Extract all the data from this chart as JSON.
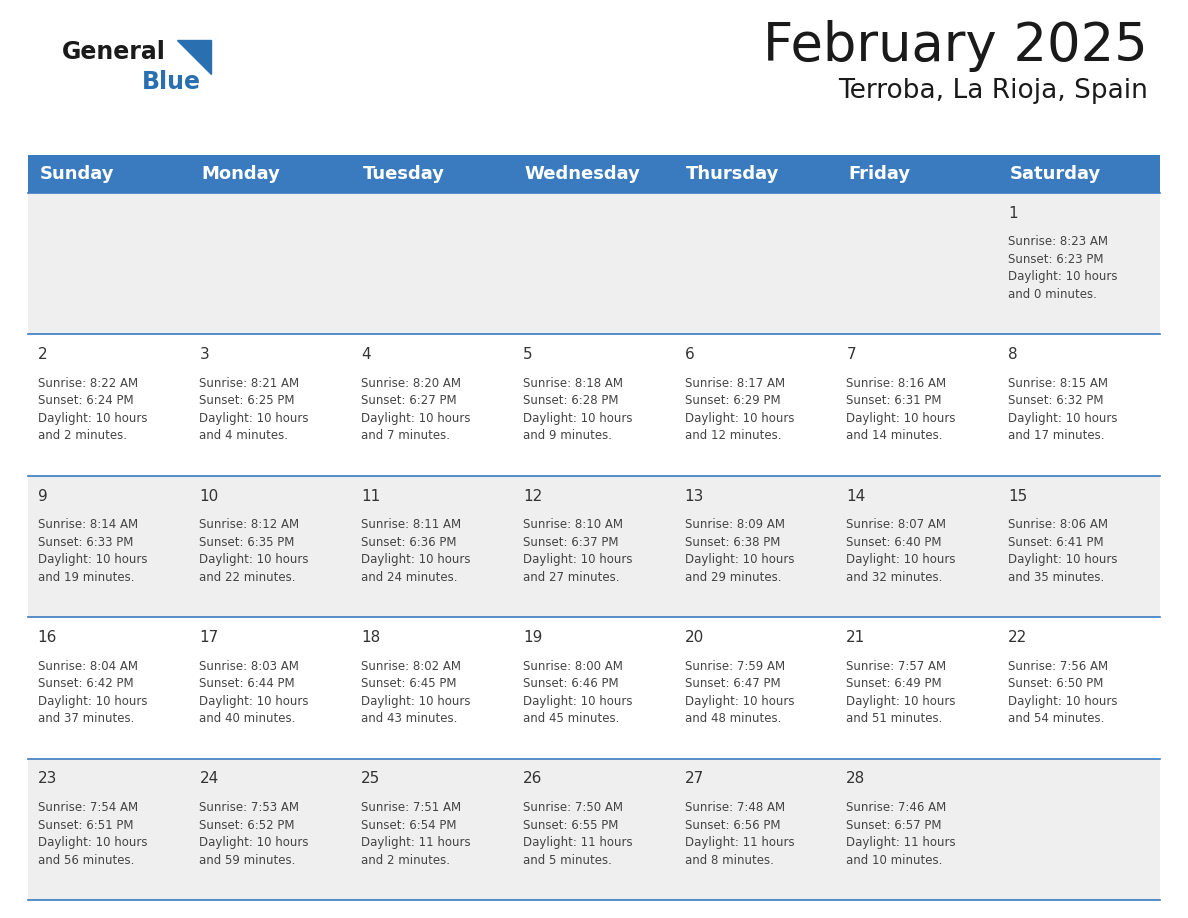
{
  "title": "February 2025",
  "subtitle": "Terroba, La Rioja, Spain",
  "header_bg": "#3a7abf",
  "header_text_color": "#ffffff",
  "cell_bg_gray": "#efefef",
  "cell_bg_white": "#ffffff",
  "cell_text_color": "#444444",
  "day_number_color": "#333333",
  "border_color": "#3a7abf",
  "days_of_week": [
    "Sunday",
    "Monday",
    "Tuesday",
    "Wednesday",
    "Thursday",
    "Friday",
    "Saturday"
  ],
  "weeks": [
    [
      {
        "day": null,
        "info": null
      },
      {
        "day": null,
        "info": null
      },
      {
        "day": null,
        "info": null
      },
      {
        "day": null,
        "info": null
      },
      {
        "day": null,
        "info": null
      },
      {
        "day": null,
        "info": null
      },
      {
        "day": 1,
        "info": "Sunrise: 8:23 AM\nSunset: 6:23 PM\nDaylight: 10 hours\nand 0 minutes."
      }
    ],
    [
      {
        "day": 2,
        "info": "Sunrise: 8:22 AM\nSunset: 6:24 PM\nDaylight: 10 hours\nand 2 minutes."
      },
      {
        "day": 3,
        "info": "Sunrise: 8:21 AM\nSunset: 6:25 PM\nDaylight: 10 hours\nand 4 minutes."
      },
      {
        "day": 4,
        "info": "Sunrise: 8:20 AM\nSunset: 6:27 PM\nDaylight: 10 hours\nand 7 minutes."
      },
      {
        "day": 5,
        "info": "Sunrise: 8:18 AM\nSunset: 6:28 PM\nDaylight: 10 hours\nand 9 minutes."
      },
      {
        "day": 6,
        "info": "Sunrise: 8:17 AM\nSunset: 6:29 PM\nDaylight: 10 hours\nand 12 minutes."
      },
      {
        "day": 7,
        "info": "Sunrise: 8:16 AM\nSunset: 6:31 PM\nDaylight: 10 hours\nand 14 minutes."
      },
      {
        "day": 8,
        "info": "Sunrise: 8:15 AM\nSunset: 6:32 PM\nDaylight: 10 hours\nand 17 minutes."
      }
    ],
    [
      {
        "day": 9,
        "info": "Sunrise: 8:14 AM\nSunset: 6:33 PM\nDaylight: 10 hours\nand 19 minutes."
      },
      {
        "day": 10,
        "info": "Sunrise: 8:12 AM\nSunset: 6:35 PM\nDaylight: 10 hours\nand 22 minutes."
      },
      {
        "day": 11,
        "info": "Sunrise: 8:11 AM\nSunset: 6:36 PM\nDaylight: 10 hours\nand 24 minutes."
      },
      {
        "day": 12,
        "info": "Sunrise: 8:10 AM\nSunset: 6:37 PM\nDaylight: 10 hours\nand 27 minutes."
      },
      {
        "day": 13,
        "info": "Sunrise: 8:09 AM\nSunset: 6:38 PM\nDaylight: 10 hours\nand 29 minutes."
      },
      {
        "day": 14,
        "info": "Sunrise: 8:07 AM\nSunset: 6:40 PM\nDaylight: 10 hours\nand 32 minutes."
      },
      {
        "day": 15,
        "info": "Sunrise: 8:06 AM\nSunset: 6:41 PM\nDaylight: 10 hours\nand 35 minutes."
      }
    ],
    [
      {
        "day": 16,
        "info": "Sunrise: 8:04 AM\nSunset: 6:42 PM\nDaylight: 10 hours\nand 37 minutes."
      },
      {
        "day": 17,
        "info": "Sunrise: 8:03 AM\nSunset: 6:44 PM\nDaylight: 10 hours\nand 40 minutes."
      },
      {
        "day": 18,
        "info": "Sunrise: 8:02 AM\nSunset: 6:45 PM\nDaylight: 10 hours\nand 43 minutes."
      },
      {
        "day": 19,
        "info": "Sunrise: 8:00 AM\nSunset: 6:46 PM\nDaylight: 10 hours\nand 45 minutes."
      },
      {
        "day": 20,
        "info": "Sunrise: 7:59 AM\nSunset: 6:47 PM\nDaylight: 10 hours\nand 48 minutes."
      },
      {
        "day": 21,
        "info": "Sunrise: 7:57 AM\nSunset: 6:49 PM\nDaylight: 10 hours\nand 51 minutes."
      },
      {
        "day": 22,
        "info": "Sunrise: 7:56 AM\nSunset: 6:50 PM\nDaylight: 10 hours\nand 54 minutes."
      }
    ],
    [
      {
        "day": 23,
        "info": "Sunrise: 7:54 AM\nSunset: 6:51 PM\nDaylight: 10 hours\nand 56 minutes."
      },
      {
        "day": 24,
        "info": "Sunrise: 7:53 AM\nSunset: 6:52 PM\nDaylight: 10 hours\nand 59 minutes."
      },
      {
        "day": 25,
        "info": "Sunrise: 7:51 AM\nSunset: 6:54 PM\nDaylight: 11 hours\nand 2 minutes."
      },
      {
        "day": 26,
        "info": "Sunrise: 7:50 AM\nSunset: 6:55 PM\nDaylight: 11 hours\nand 5 minutes."
      },
      {
        "day": 27,
        "info": "Sunrise: 7:48 AM\nSunset: 6:56 PM\nDaylight: 11 hours\nand 8 minutes."
      },
      {
        "day": 28,
        "info": "Sunrise: 7:46 AM\nSunset: 6:57 PM\nDaylight: 11 hours\nand 10 minutes."
      },
      {
        "day": null,
        "info": null
      }
    ]
  ],
  "logo_general_color": "#1a1a1a",
  "logo_blue_color": "#2a6faf",
  "title_fontsize": 38,
  "subtitle_fontsize": 19,
  "header_fontsize": 13,
  "day_number_fontsize": 11,
  "cell_info_fontsize": 8.5
}
